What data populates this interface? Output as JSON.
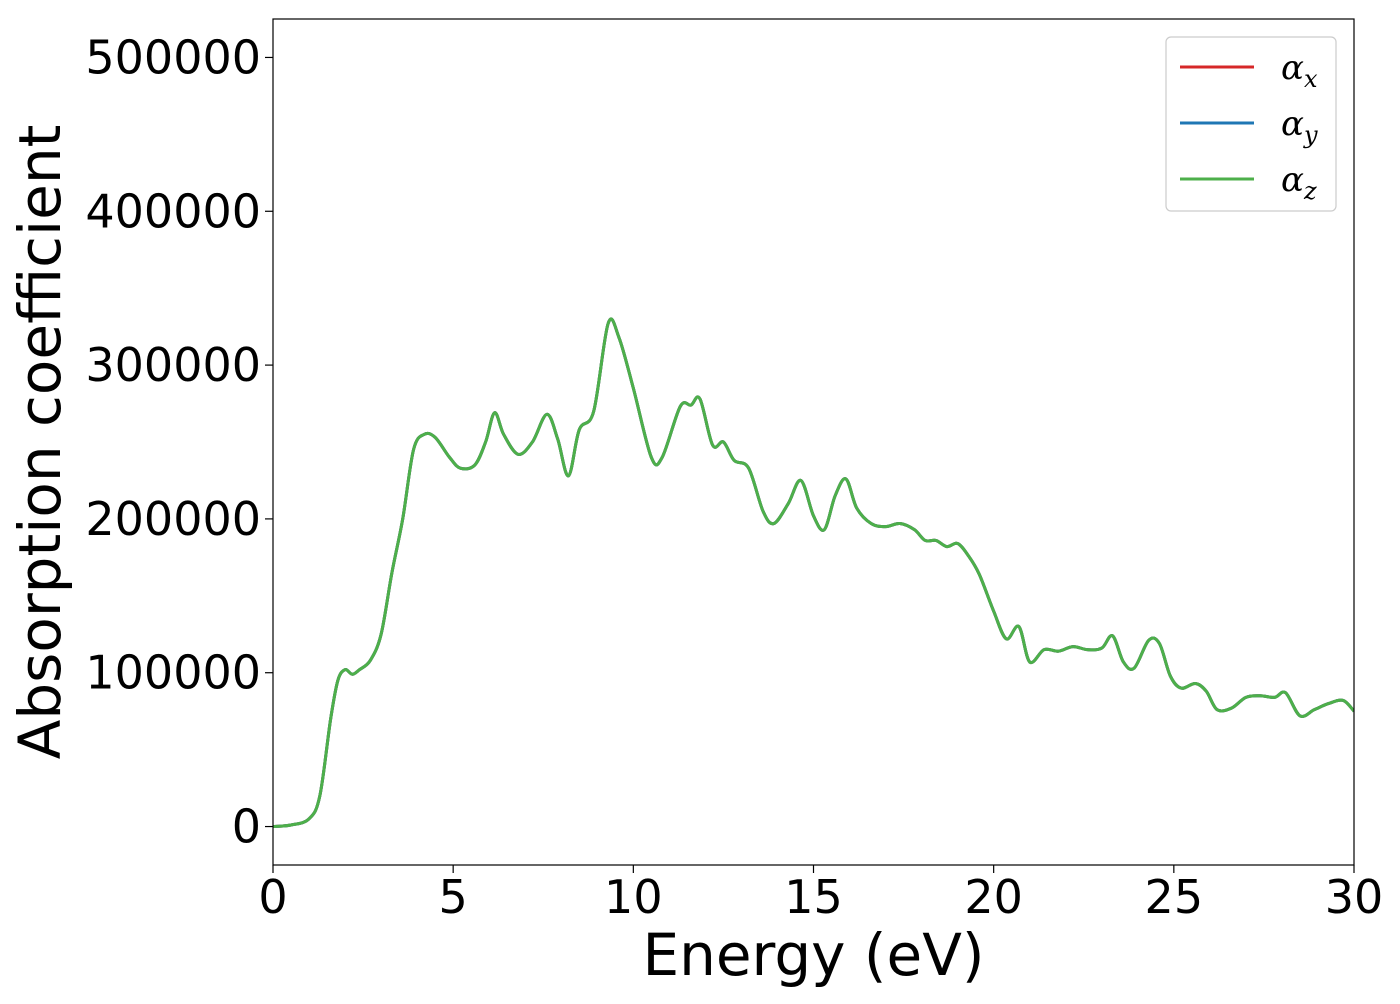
{
  "chart_data": {
    "type": "line",
    "title": "",
    "xlabel": "Energy (eV)",
    "ylabel": "Absorption coefficient",
    "xlim": [
      0,
      30
    ],
    "ylim": [
      -25000,
      525000
    ],
    "xticks": [
      0,
      5,
      10,
      15,
      20,
      25,
      30
    ],
    "xtick_labels": [
      "0",
      "5",
      "10",
      "15",
      "20",
      "25",
      "30"
    ],
    "yticks": [
      0,
      100000,
      200000,
      300000,
      400000,
      500000
    ],
    "ytick_labels": [
      "0",
      "100000",
      "200000",
      "300000",
      "400000",
      "500000"
    ],
    "grid": false,
    "legend_position": "top-right",
    "x": [
      0,
      0.5,
      1.0,
      1.3,
      1.6,
      1.8,
      2.0,
      2.2,
      2.4,
      2.7,
      3.0,
      3.3,
      3.6,
      3.9,
      4.2,
      4.5,
      4.9,
      5.2,
      5.6,
      5.9,
      6.15,
      6.4,
      6.8,
      7.2,
      7.6,
      7.9,
      8.2,
      8.5,
      8.9,
      9.3,
      9.6,
      10.0,
      10.5,
      10.8,
      11.3,
      11.6,
      11.85,
      12.2,
      12.5,
      12.8,
      13.2,
      13.6,
      13.9,
      14.3,
      14.65,
      15.0,
      15.3,
      15.6,
      15.9,
      16.2,
      16.6,
      17.0,
      17.4,
      17.8,
      18.1,
      18.4,
      18.7,
      19.0,
      19.3,
      19.6,
      20.0,
      20.35,
      20.7,
      21.0,
      21.4,
      21.8,
      22.2,
      22.6,
      23.0,
      23.3,
      23.6,
      23.9,
      24.3,
      24.6,
      24.9,
      25.2,
      25.6,
      25.9,
      26.2,
      26.6,
      27.0,
      27.4,
      27.8,
      28.1,
      28.5,
      28.9,
      29.3,
      29.7,
      30.0
    ],
    "series": [
      {
        "name": "αx",
        "color": "#d62728",
        "values": [
          0,
          1000,
          5000,
          20000,
          70000,
          95000,
          102000,
          99000,
          102000,
          108000,
          125000,
          165000,
          200000,
          245000,
          255000,
          253000,
          240000,
          233000,
          235000,
          250000,
          269000,
          255000,
          242000,
          250000,
          268000,
          252000,
          228000,
          258000,
          270000,
          327000,
          318000,
          285000,
          240000,
          240000,
          273000,
          274000,
          278000,
          248000,
          250000,
          238000,
          233000,
          205000,
          197000,
          210000,
          225000,
          202000,
          193000,
          215000,
          226000,
          207000,
          197000,
          195000,
          197000,
          193000,
          186000,
          186000,
          182000,
          184000,
          176000,
          164000,
          140000,
          122000,
          130000,
          107000,
          115000,
          114000,
          117000,
          115000,
          116000,
          124000,
          107000,
          103000,
          121000,
          119000,
          98000,
          90000,
          93000,
          88000,
          76000,
          77000,
          84000,
          85000,
          84000,
          87000,
          72000,
          76000,
          80000,
          82000,
          75000
        ]
      },
      {
        "name": "αy",
        "color": "#1f77b4",
        "values": [
          0,
          1000,
          5000,
          20000,
          70000,
          95000,
          102000,
          99000,
          102000,
          108000,
          125000,
          165000,
          200000,
          245000,
          255000,
          253000,
          240000,
          233000,
          235000,
          250000,
          269000,
          255000,
          242000,
          250000,
          268000,
          252000,
          228000,
          258000,
          270000,
          327000,
          318000,
          285000,
          240000,
          240000,
          273000,
          274000,
          278000,
          248000,
          250000,
          238000,
          233000,
          205000,
          197000,
          210000,
          225000,
          202000,
          193000,
          215000,
          226000,
          207000,
          197000,
          195000,
          197000,
          193000,
          186000,
          186000,
          182000,
          184000,
          176000,
          164000,
          140000,
          122000,
          130000,
          107000,
          115000,
          114000,
          117000,
          115000,
          116000,
          124000,
          107000,
          103000,
          121000,
          119000,
          98000,
          90000,
          93000,
          88000,
          76000,
          77000,
          84000,
          85000,
          84000,
          87000,
          72000,
          76000,
          80000,
          82000,
          75000
        ]
      },
      {
        "name": "αz",
        "color": "#4daf4a",
        "values": [
          0,
          1000,
          5000,
          20000,
          70000,
          95000,
          102000,
          99000,
          102000,
          108000,
          125000,
          165000,
          200000,
          245000,
          255000,
          253000,
          240000,
          233000,
          235000,
          250000,
          269000,
          255000,
          242000,
          250000,
          268000,
          252000,
          228000,
          258000,
          270000,
          327000,
          318000,
          285000,
          240000,
          240000,
          273000,
          274000,
          278000,
          248000,
          250000,
          238000,
          233000,
          205000,
          197000,
          210000,
          225000,
          202000,
          193000,
          215000,
          226000,
          207000,
          197000,
          195000,
          197000,
          193000,
          186000,
          186000,
          182000,
          184000,
          176000,
          164000,
          140000,
          122000,
          130000,
          107000,
          115000,
          114000,
          117000,
          115000,
          116000,
          124000,
          107000,
          103000,
          121000,
          119000,
          98000,
          90000,
          93000,
          88000,
          76000,
          77000,
          84000,
          85000,
          84000,
          87000,
          72000,
          76000,
          80000,
          82000,
          75000
        ]
      }
    ],
    "legend": [
      {
        "symbol": "α",
        "sub": "x",
        "color": "#d62728"
      },
      {
        "symbol": "α",
        "sub": "y",
        "color": "#1f77b4"
      },
      {
        "symbol": "α",
        "sub": "z",
        "color": "#4daf4a"
      }
    ]
  }
}
